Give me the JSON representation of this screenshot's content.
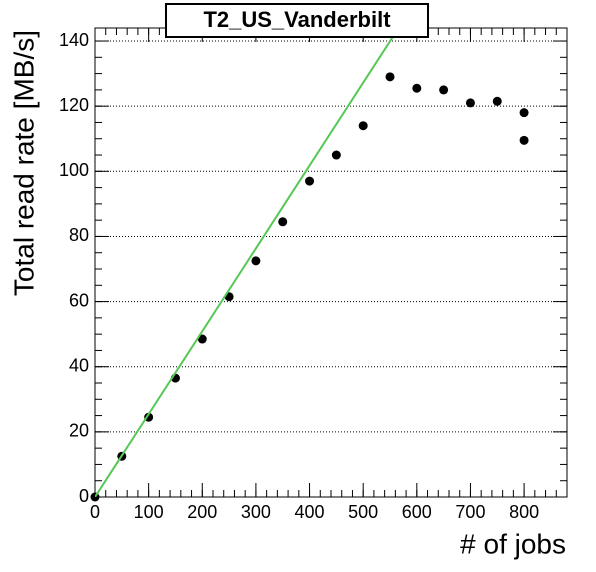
{
  "chart_data": {
    "type": "scatter",
    "title": "T2_US_Vanderbilt",
    "xlabel": "# of jobs",
    "ylabel": "Total read rate [MB/s]",
    "xlim": [
      0,
      880
    ],
    "ylim": [
      0,
      144
    ],
    "xticks": [
      0,
      100,
      200,
      300,
      400,
      500,
      600,
      700,
      800
    ],
    "yticks": [
      0,
      20,
      40,
      60,
      80,
      100,
      120,
      140
    ],
    "grid": "y",
    "series": [
      {
        "mode": "markers",
        "color": "#000000",
        "x": [
          0,
          50,
          100,
          150,
          200,
          250,
          300,
          350,
          400,
          450,
          500,
          550,
          600,
          650,
          700,
          750,
          800,
          800
        ],
        "values": [
          0,
          12.5,
          24.5,
          36.5,
          48.5,
          61.5,
          72.5,
          84.5,
          97,
          105,
          114,
          129,
          125.5,
          125,
          121,
          121.5,
          118,
          109.5
        ]
      },
      {
        "mode": "line",
        "color": "#55c855",
        "x": [
          0,
          566
        ],
        "values": [
          0,
          144
        ]
      }
    ]
  }
}
